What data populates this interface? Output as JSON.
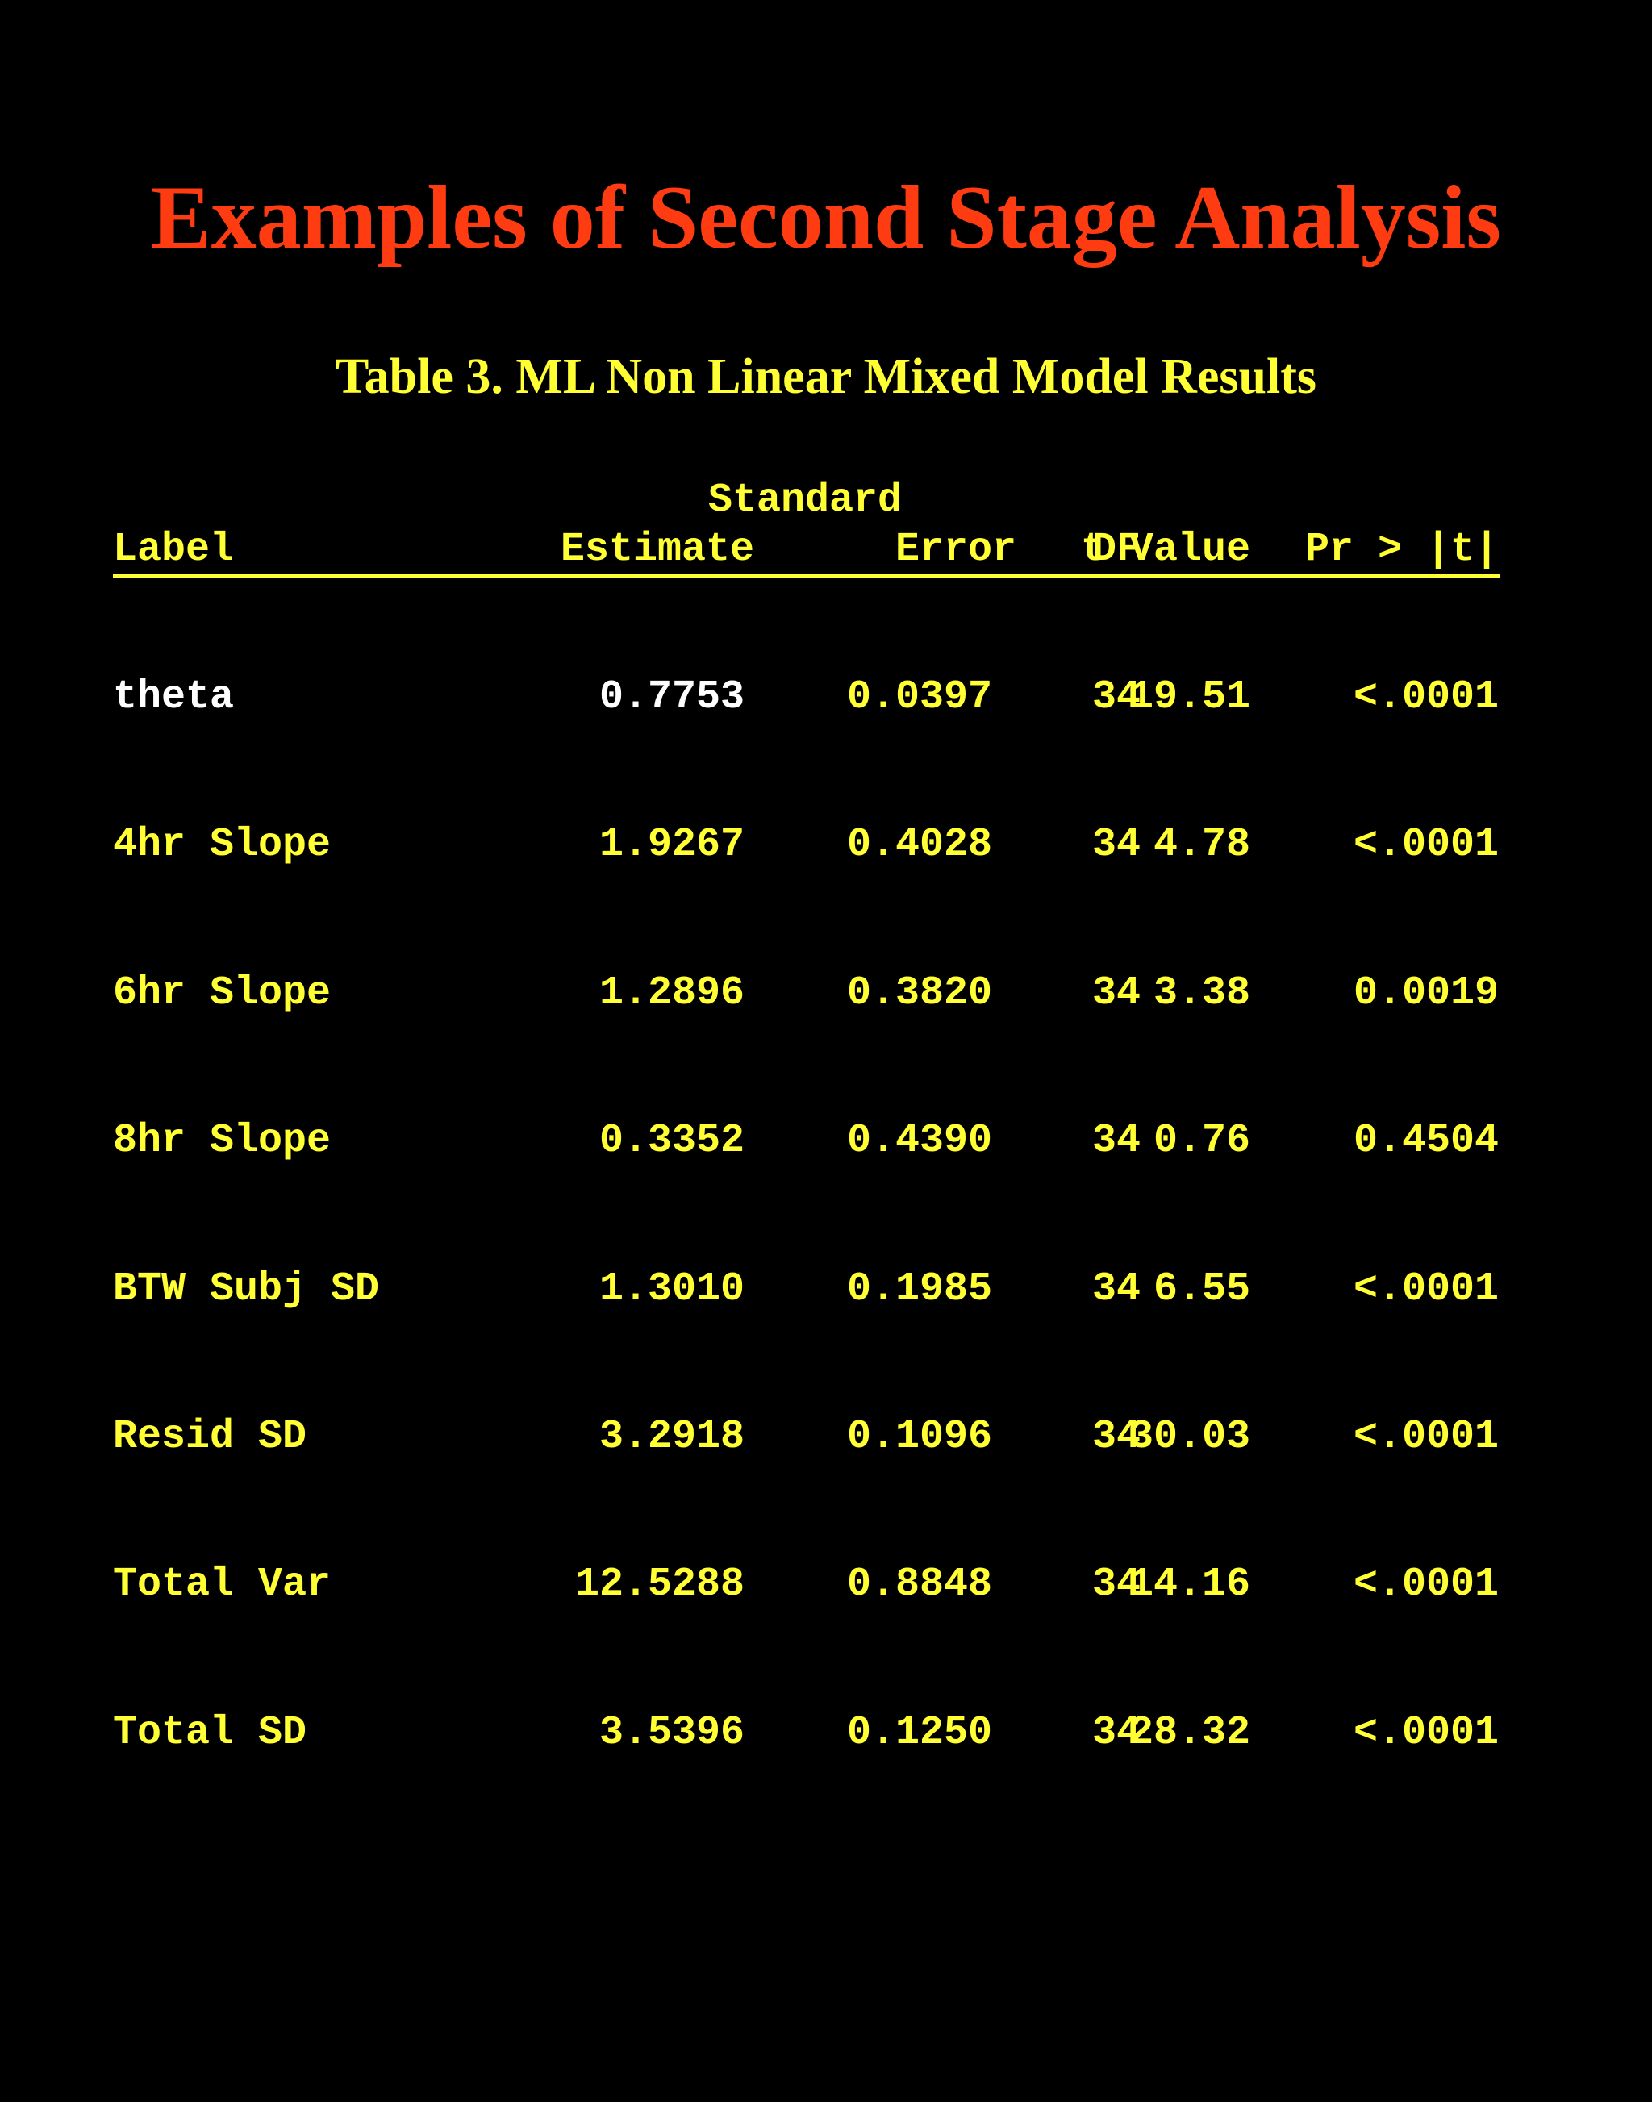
{
  "slide": {
    "title": "Examples of Second Stage Analysis",
    "table_title": "Table 3. ML Non Linear Mixed Model Results"
  },
  "table": {
    "header_top": {
      "standard": "Standard"
    },
    "headers": {
      "label": "Label",
      "estimate": "Estimate",
      "error": "Error",
      "df": "DF",
      "t_value": "t Value",
      "p_value": "Pr > |t|"
    },
    "rows": [
      {
        "label": "theta",
        "estimate": "0.7753",
        "error": "0.0397",
        "df": "34",
        "t_value": "19.51",
        "p_value": "<.0001"
      },
      {
        "label": "4hr Slope",
        "estimate": "1.9267",
        "error": "0.4028",
        "df": "34",
        "t_value": "4.78",
        "p_value": "<.0001"
      },
      {
        "label": "6hr Slope",
        "estimate": "1.2896",
        "error": "0.3820",
        "df": "34",
        "t_value": "3.38",
        "p_value": "0.0019"
      },
      {
        "label": "8hr Slope",
        "estimate": "0.3352",
        "error": "0.4390",
        "df": "34",
        "t_value": "0.76",
        "p_value": "0.4504"
      },
      {
        "label": "BTW Subj SD",
        "estimate": "1.3010",
        "error": "0.1985",
        "df": "34",
        "t_value": "6.55",
        "p_value": "<.0001"
      },
      {
        "label": "Resid SD",
        "estimate": "3.2918",
        "error": "0.1096",
        "df": "34",
        "t_value": "30.03",
        "p_value": "<.0001"
      },
      {
        "label": "Total Var",
        "estimate": "12.5288",
        "error": "0.8848",
        "df": "34",
        "t_value": "14.16",
        "p_value": "<.0001"
      },
      {
        "label": "Total SD",
        "estimate": "3.5396",
        "error": "0.1250",
        "df": "34",
        "t_value": "28.32",
        "p_value": "<.0001"
      }
    ]
  },
  "colors": {
    "background": "#000000",
    "title": "#ff3b12",
    "table_text": "#ffff33",
    "highlight_row": "#ffffff"
  }
}
